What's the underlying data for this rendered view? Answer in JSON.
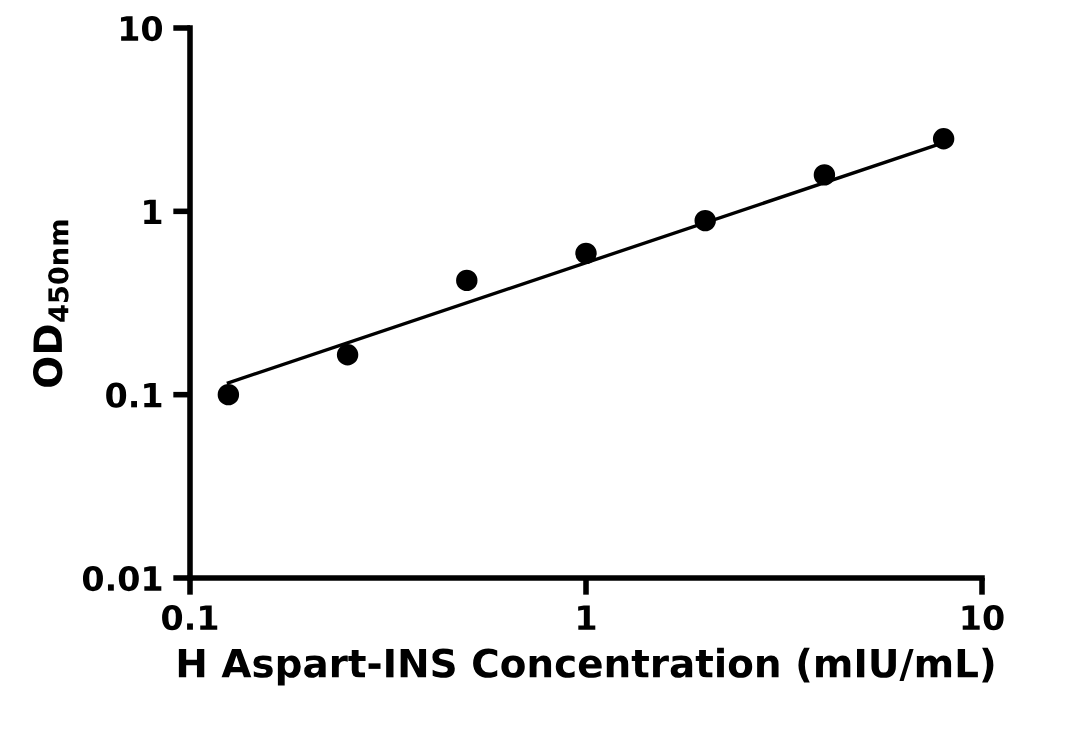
{
  "chart_data": {
    "type": "scatter",
    "xlabel": "H Aspart-INS Concentration (mIU/mL)",
    "ylabel": "OD$_{450nm}$",
    "log": "xy",
    "xlim": [
      0.1,
      10
    ],
    "ylim": [
      0.01,
      10
    ],
    "xticks": [
      0.1,
      1,
      10
    ],
    "yticks": [
      0.01,
      0.1,
      1,
      10
    ],
    "grid": false,
    "legend": false,
    "marker": "circle",
    "series": [
      {
        "color": "#000000",
        "x": [
          0.125,
          0.25,
          0.5,
          1,
          2,
          4,
          8
        ],
        "values": [
          0.1,
          0.165,
          0.42,
          0.59,
          0.89,
          1.58,
          2.49
        ]
      },
      {
        "type": "line",
        "color": "#000000",
        "x": [
          0.125,
          8
        ],
        "values": [
          0.116,
          2.37
        ],
        "line_style": "solid",
        "marker": "none"
      }
    ]
  }
}
